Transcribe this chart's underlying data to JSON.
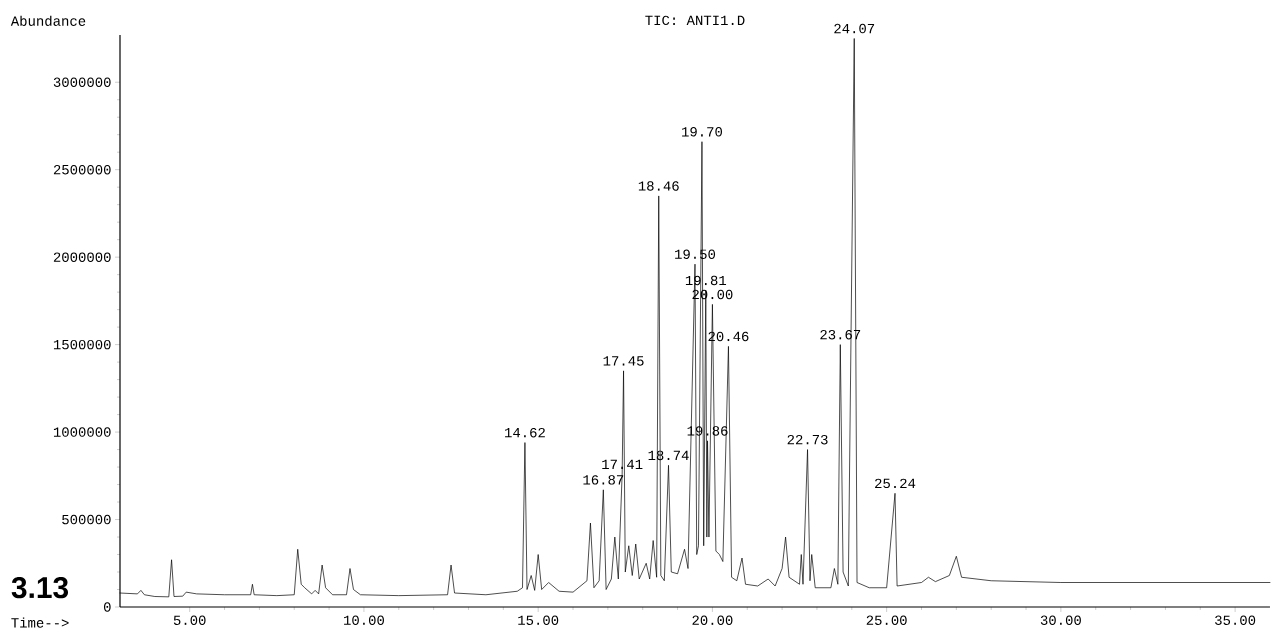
{
  "chart_data": {
    "type": "line",
    "title": "TIC: ANTI1.D",
    "xlabel": "Time-->",
    "ylabel": "Abundance",
    "xlim": [
      3,
      36
    ],
    "ylim": [
      0,
      3270000
    ],
    "xticks": [
      {
        "value": 5,
        "label": "5.00"
      },
      {
        "value": 10,
        "label": "10.00"
      },
      {
        "value": 15,
        "label": "15.00"
      },
      {
        "value": 20,
        "label": "20.00"
      },
      {
        "value": 25,
        "label": "25.00"
      },
      {
        "value": 30,
        "label": "30.00"
      },
      {
        "value": 35,
        "label": "35.00"
      }
    ],
    "yticks": [
      0,
      500000,
      1000000,
      1500000,
      2000000,
      2500000,
      3000000
    ],
    "grid": false,
    "marker": "none",
    "line_style": "solid",
    "series": [
      {
        "color": "#000000",
        "x": [
          3.0,
          3.5,
          3.6,
          3.7,
          4.0,
          4.4,
          4.48,
          4.55,
          4.8,
          4.9,
          5.2,
          6.0,
          6.75,
          6.8,
          6.85,
          7.5,
          8.0,
          8.1,
          8.2,
          8.3,
          8.5,
          8.6,
          8.7,
          8.8,
          8.9,
          9.1,
          9.5,
          9.6,
          9.7,
          9.9,
          11.0,
          12.4,
          12.5,
          12.6,
          13.5,
          14.4,
          14.55,
          14.62,
          14.68,
          14.8,
          14.9,
          15.0,
          15.1,
          15.3,
          15.6,
          16.0,
          16.4,
          16.5,
          16.6,
          16.75,
          16.87,
          16.95,
          17.1,
          17.2,
          17.3,
          17.41,
          17.45,
          17.5,
          17.6,
          17.7,
          17.8,
          17.9,
          18.1,
          18.2,
          18.3,
          18.4,
          18.46,
          18.52,
          18.62,
          18.74,
          18.82,
          19.0,
          19.2,
          19.3,
          19.5,
          19.55,
          19.6,
          19.7,
          19.75,
          19.81,
          19.84,
          19.86,
          19.9,
          20.0,
          20.1,
          20.2,
          20.3,
          20.46,
          20.55,
          20.7,
          20.85,
          20.95,
          21.3,
          21.6,
          21.8,
          22.0,
          22.1,
          22.2,
          22.5,
          22.55,
          22.6,
          22.73,
          22.8,
          22.85,
          22.95,
          23.4,
          23.5,
          23.6,
          23.67,
          23.75,
          23.9,
          24.07,
          24.15,
          24.5,
          25.0,
          25.24,
          25.3,
          26.0,
          26.2,
          26.4,
          26.8,
          27.0,
          27.15,
          28.0,
          30.0,
          33.0,
          36.0
        ],
        "values": [
          80000,
          75000,
          95000,
          70000,
          60000,
          58000,
          270000,
          60000,
          62000,
          85000,
          75000,
          70000,
          70000,
          130000,
          70000,
          65000,
          70000,
          330000,
          130000,
          110000,
          75000,
          95000,
          75000,
          240000,
          110000,
          70000,
          70000,
          220000,
          100000,
          70000,
          65000,
          70000,
          240000,
          80000,
          70000,
          90000,
          110000,
          940000,
          100000,
          180000,
          95000,
          300000,
          100000,
          140000,
          90000,
          85000,
          150000,
          480000,
          110000,
          150000,
          670000,
          100000,
          160000,
          400000,
          160000,
          760000,
          1350000,
          200000,
          350000,
          180000,
          360000,
          160000,
          250000,
          160000,
          380000,
          170000,
          2350000,
          180000,
          150000,
          810000,
          200000,
          190000,
          330000,
          220000,
          1960000,
          300000,
          350000,
          2660000,
          350000,
          1810000,
          400000,
          950000,
          400000,
          1730000,
          320000,
          300000,
          260000,
          1490000,
          170000,
          150000,
          280000,
          130000,
          120000,
          160000,
          120000,
          220000,
          400000,
          170000,
          130000,
          300000,
          130000,
          900000,
          150000,
          300000,
          110000,
          110000,
          220000,
          130000,
          1500000,
          200000,
          120000,
          3250000,
          140000,
          110000,
          110000,
          650000,
          120000,
          140000,
          170000,
          145000,
          180000,
          290000,
          170000,
          150000,
          140000,
          140000,
          140000
        ]
      }
    ],
    "annotations": [
      {
        "text": "14.62",
        "x": 14.62,
        "y": 940000
      },
      {
        "text": "16.87",
        "x": 16.87,
        "y": 670000
      },
      {
        "text": "17.41",
        "x": 17.41,
        "y": 760000
      },
      {
        "text": "17.45",
        "x": 17.45,
        "y": 1350000
      },
      {
        "text": "18.46",
        "x": 18.46,
        "y": 2350000
      },
      {
        "text": "18.74",
        "x": 18.74,
        "y": 810000
      },
      {
        "text": "19.50",
        "x": 19.5,
        "y": 1960000
      },
      {
        "text": "19.70",
        "x": 19.7,
        "y": 2660000
      },
      {
        "text": "19.81",
        "x": 19.81,
        "y": 1810000
      },
      {
        "text": "19.86",
        "x": 19.86,
        "y": 950000
      },
      {
        "text": "20.00",
        "x": 20.0,
        "y": 1730000
      },
      {
        "text": "20.46",
        "x": 20.46,
        "y": 1490000
      },
      {
        "text": "22.73",
        "x": 22.73,
        "y": 900000
      },
      {
        "text": "23.67",
        "x": 23.67,
        "y": 1500000
      },
      {
        "text": "24.07",
        "x": 24.07,
        "y": 3250000
      },
      {
        "text": "25.24",
        "x": 25.24,
        "y": 650000
      },
      "3.13"
    ]
  }
}
